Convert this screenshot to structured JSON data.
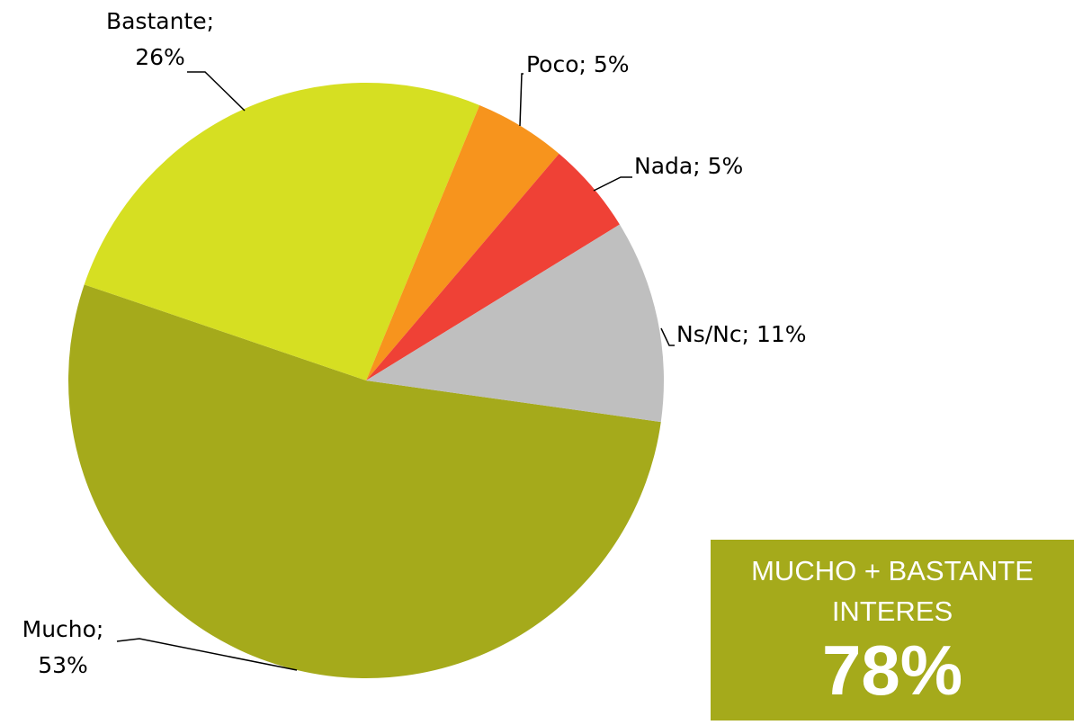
{
  "chart_data": {
    "type": "pie",
    "values": [
      53,
      26,
      5,
      5,
      11
    ],
    "value_labels": [
      "Mucho; 53%",
      "Bastante; 26%",
      "Poco; 5%",
      "Nada; 5%",
      "Ns/Nc; 11%"
    ],
    "colors": [
      "#a5aa1b",
      "#d6df22",
      "#f7941d",
      "#ef4136",
      "#bfbfbf"
    ],
    "callout": {
      "lines": [
        "MUCHO + BASTANTE",
        "INTERES"
      ],
      "value": "78%"
    }
  }
}
